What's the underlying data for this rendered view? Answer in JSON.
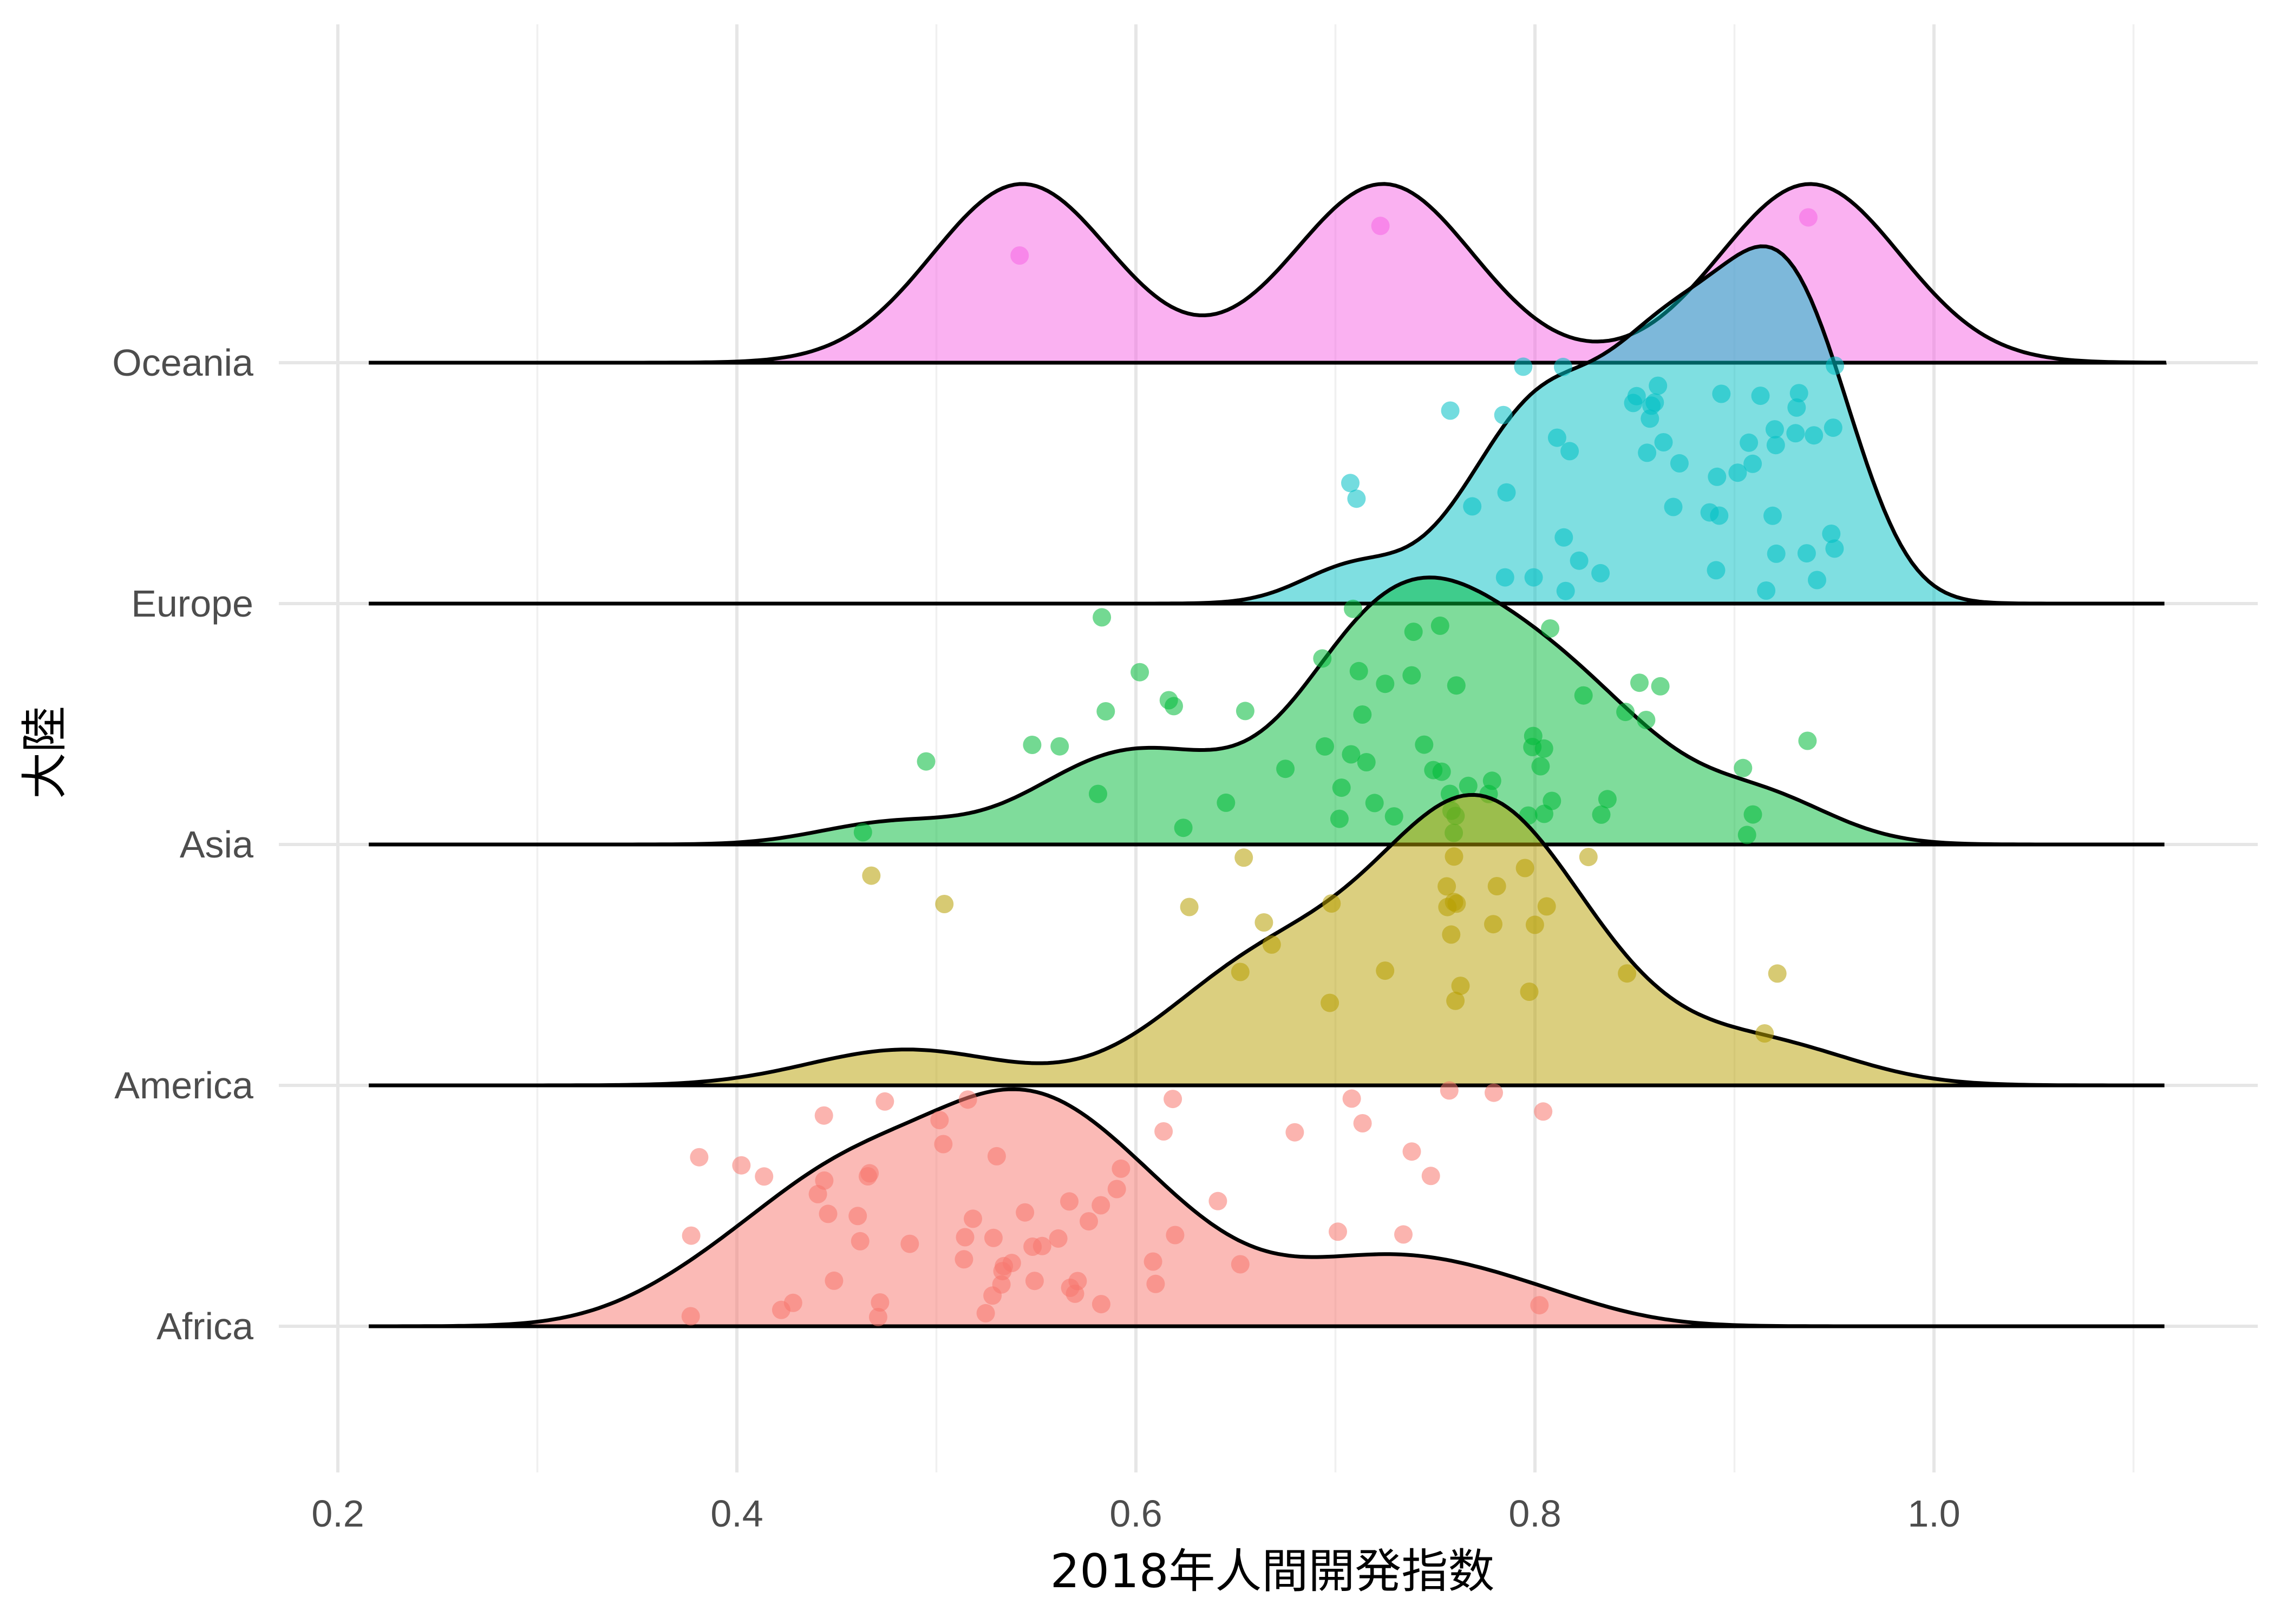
{
  "chart_data": {
    "type": "ridgeline",
    "xlabel": "2018年人間開発指数",
    "ylabel": "大陸",
    "xlim": [
      0.15,
      1.15
    ],
    "x_ticks": [
      "0.2",
      "0.4",
      "0.6",
      "0.8",
      "1.0"
    ],
    "grid": true,
    "legend": "none",
    "series": [
      {
        "name": "Africa",
        "color": "#F8766D",
        "values": [
          0.378,
          0.383,
          0.43,
          0.44,
          0.461,
          0.378,
          0.402,
          0.424,
          0.443,
          0.446,
          0.463,
          0.412,
          0.469,
          0.476,
          0.443,
          0.448,
          0.464,
          0.486,
          0.501,
          0.513,
          0.515,
          0.523,
          0.53,
          0.537,
          0.565,
          0.571,
          0.505,
          0.518,
          0.53,
          0.533,
          0.544,
          0.554,
          0.571,
          0.581,
          0.592,
          0.608,
          0.612,
          0.618,
          0.652,
          0.513,
          0.532,
          0.548,
          0.551,
          0.562,
          0.578,
          0.583,
          0.594,
          0.607,
          0.618,
          0.642,
          0.681,
          0.708,
          0.714,
          0.74,
          0.746,
          0.756,
          0.781,
          0.806,
          0.703,
          0.733,
          0.801,
          0.471,
          0.535,
          0.567,
          0.533,
          0.466
        ]
      },
      {
        "name": "America",
        "color": "#B79F00",
        "values": [
          0.466,
          0.503,
          0.666,
          0.668,
          0.758,
          0.762,
          0.761,
          0.781,
          0.799,
          0.914,
          0.92,
          0.628,
          0.655,
          0.758,
          0.759,
          0.781,
          0.805,
          0.828,
          0.699,
          0.723,
          0.759,
          0.797,
          0.845,
          0.652,
          0.699,
          0.754,
          0.764,
          0.796
        ]
      },
      {
        "name": "Asia",
        "color": "#00BA38",
        "values": [
          0.463,
          0.496,
          0.656,
          0.702,
          0.708,
          0.717,
          0.758,
          0.778,
          0.799,
          0.809,
          0.547,
          0.583,
          0.585,
          0.618,
          0.674,
          0.702,
          0.712,
          0.72,
          0.74,
          0.754,
          0.759,
          0.765,
          0.809,
          0.834,
          0.863,
          0.906,
          0.906,
          0.562,
          0.617,
          0.693,
          0.708,
          0.759,
          0.805,
          0.838,
          0.847,
          0.855,
          0.911,
          0.937,
          0.581,
          0.603,
          0.625,
          0.645,
          0.759,
          0.797,
          0.803,
          0.852,
          0.694,
          0.713,
          0.729,
          0.744,
          0.75,
          0.761,
          0.798,
          0.801,
          0.724,
          0.739,
          0.752,
          0.78,
          0.823
        ]
      },
      {
        "name": "Europe",
        "color": "#00BFC4",
        "values": [
          0.708,
          0.834,
          0.86,
          0.863,
          0.891,
          0.918,
          0.933,
          0.94,
          0.95,
          0.71,
          0.798,
          0.814,
          0.823,
          0.85,
          0.859,
          0.887,
          0.903,
          0.914,
          0.921,
          0.757,
          0.769,
          0.785,
          0.816,
          0.857,
          0.889,
          0.929,
          0.935,
          0.947,
          0.784,
          0.786,
          0.793,
          0.813,
          0.815,
          0.86,
          0.892,
          0.938,
          0.95,
          0.894,
          0.917,
          0.922,
          0.933,
          0.871,
          0.871,
          0.851,
          0.861,
          0.81,
          0.906,
          0.908,
          0.919,
          0.952
        ]
      },
      {
        "name": "Oceania",
        "color": "#F564E3",
        "values": [
          0.543,
          0.724,
          0.938
        ]
      }
    ]
  }
}
